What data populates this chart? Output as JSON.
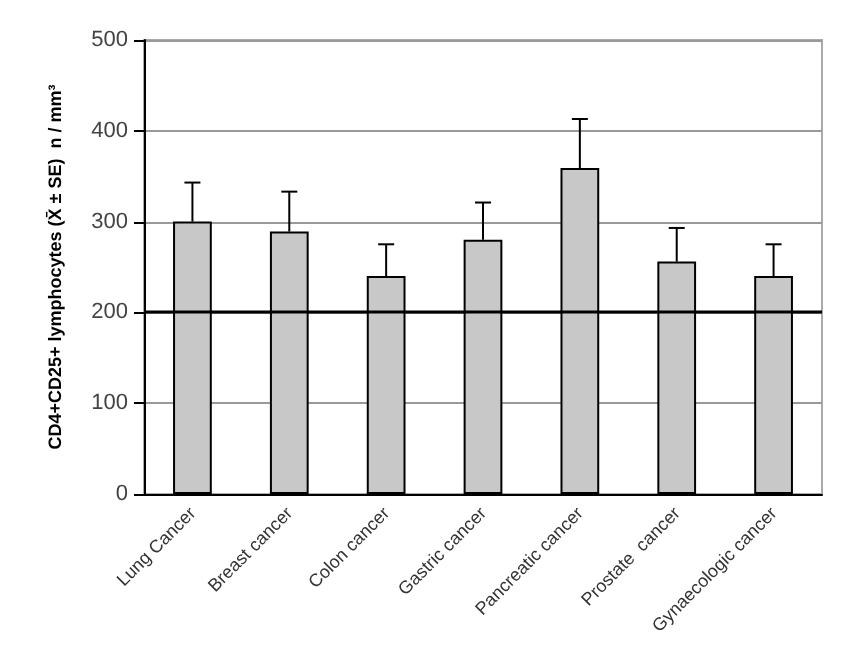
{
  "chart_data": {
    "type": "bar",
    "ylabel": "CD4+CD25+ lymphocytes (X̄ ± SE)  n / mm³",
    "categories": [
      "Lung Cancer",
      "Breast cancer",
      "Colon cancer",
      "Gastric cancer",
      "Pancreatic cancer",
      "Prostate  cancer",
      "Gynaecologic cancer"
    ],
    "values": [
      300,
      289,
      240,
      280,
      359,
      256,
      240
    ],
    "errors": [
      [
        300,
        343
      ],
      [
        289,
        333
      ],
      [
        240,
        275
      ],
      [
        280,
        321
      ],
      [
        359,
        413
      ],
      [
        256,
        293
      ],
      [
        240,
        275
      ]
    ],
    "color": "#c8c8c8",
    "ylim": [
      0,
      500
    ],
    "yticks": [
      0,
      100,
      200,
      300,
      400,
      500
    ],
    "grid": "y",
    "ref_lines": [
      {
        "axis": "y",
        "value": 200,
        "color": "#000000"
      }
    ]
  }
}
